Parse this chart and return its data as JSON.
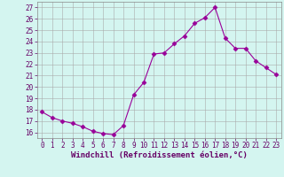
{
  "x": [
    0,
    1,
    2,
    3,
    4,
    5,
    6,
    7,
    8,
    9,
    10,
    11,
    12,
    13,
    14,
    15,
    16,
    17,
    18,
    19,
    20,
    21,
    22,
    23
  ],
  "y": [
    17.8,
    17.3,
    17.0,
    16.8,
    16.5,
    16.1,
    15.9,
    15.8,
    16.6,
    19.3,
    20.4,
    22.9,
    23.0,
    23.8,
    24.5,
    25.6,
    26.1,
    27.0,
    24.3,
    23.4,
    23.4,
    22.3,
    21.7,
    21.1
  ],
  "line_color": "#990099",
  "marker": "D",
  "markersize": 2.5,
  "linewidth": 0.8,
  "bg_color": "#d4f5f0",
  "grid_color": "#aaaaaa",
  "xlabel": "Windchill (Refroidissement éolien,°C)",
  "xlim": [
    -0.5,
    23.5
  ],
  "ylim": [
    15.5,
    27.5
  ],
  "yticks": [
    16,
    17,
    18,
    19,
    20,
    21,
    22,
    23,
    24,
    25,
    26,
    27
  ],
  "xticks": [
    0,
    1,
    2,
    3,
    4,
    5,
    6,
    7,
    8,
    9,
    10,
    11,
    12,
    13,
    14,
    15,
    16,
    17,
    18,
    19,
    20,
    21,
    22,
    23
  ],
  "tick_fontsize": 5.5,
  "xlabel_fontsize": 6.5,
  "label_color": "#660066",
  "spine_color": "#888888"
}
